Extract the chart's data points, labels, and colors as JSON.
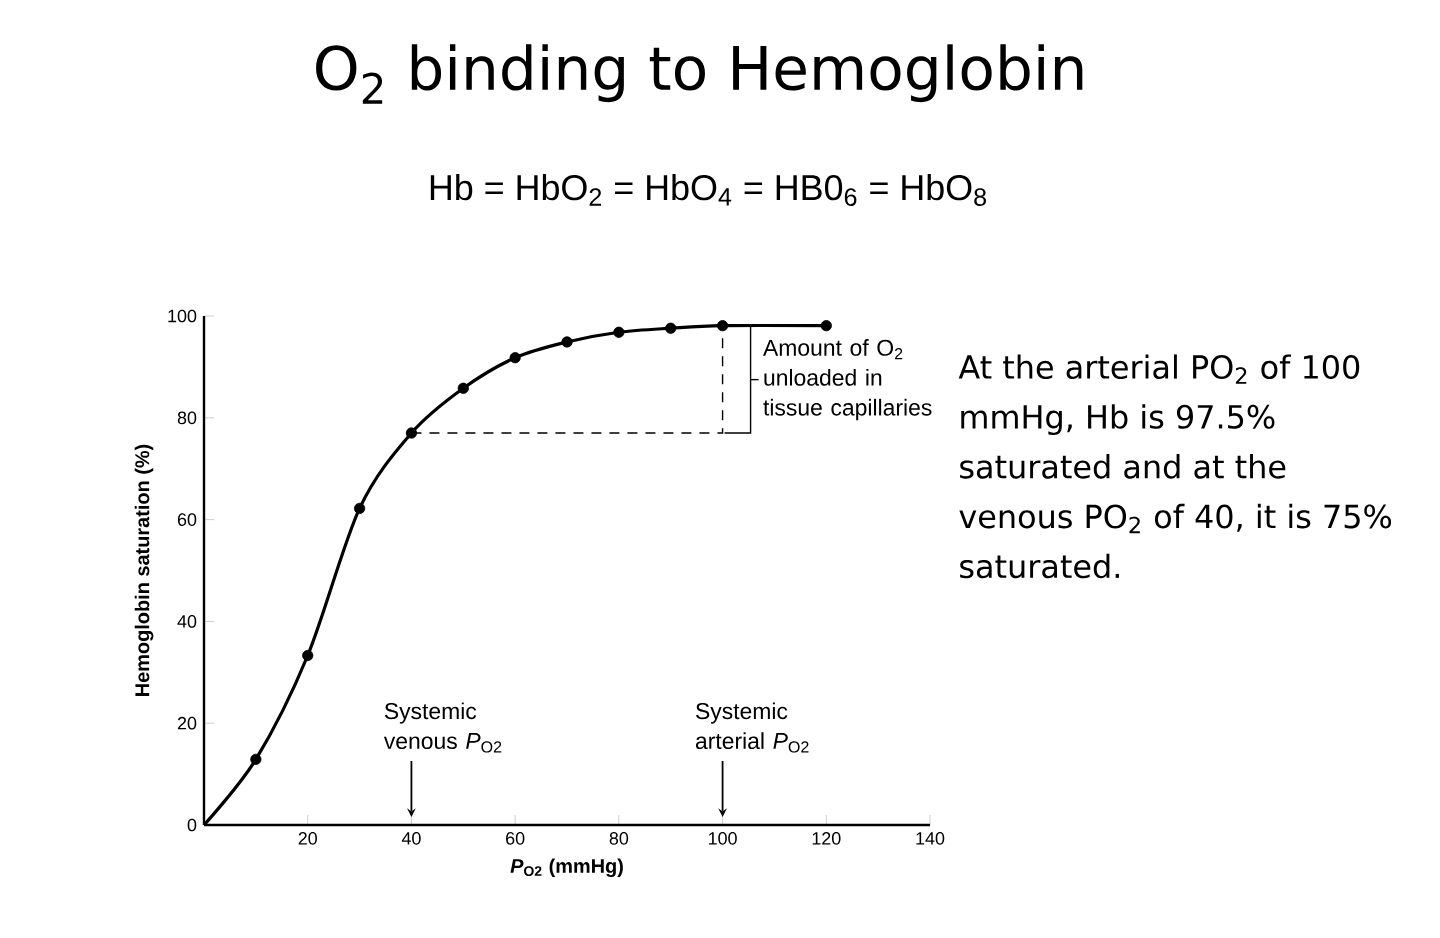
{
  "chart_data": {
    "type": "line",
    "title": "O$_{2}$ binding to Hemoglobin",
    "subtitle": "Hb = HbO$_{2}$ = HbO$_{4}$ = HB0$_{6}$ = HbO$_{8}$",
    "xlabel": "*P*$_{O2}$ (mmHg)",
    "ylabel": "Hemoglobin saturation (%)",
    "xlim": [
      0,
      140
    ],
    "ylim": [
      0,
      100
    ],
    "xticks": [
      20,
      40,
      60,
      80,
      100,
      120,
      140
    ],
    "yticks": [
      0,
      20,
      40,
      60,
      80,
      100
    ],
    "series": [
      {
        "type": "line",
        "x": [
          0,
          10,
          20,
          30,
          40,
          50,
          60,
          70,
          80,
          90,
          100,
          120
        ],
        "values": [
          0,
          12.9,
          33.3,
          62.2,
          77,
          85.8,
          91.8,
          94.9,
          96.8,
          97.6,
          98.1,
          98.1
        ],
        "color": "#000000",
        "marker": "none",
        "line_style": "solid"
      },
      {
        "type": "scatter",
        "x": [
          10,
          20,
          30,
          40,
          50,
          60,
          70,
          80,
          90,
          100,
          120
        ],
        "values": [
          12.9,
          33.3,
          62.2,
          77,
          85.8,
          91.8,
          94.9,
          96.8,
          97.6,
          98.1,
          98.1
        ],
        "color": "#000000",
        "marker": "circle"
      },
      {
        "type": "line",
        "x": [
          40,
          100,
          100
        ],
        "values": [
          77,
          77,
          98.1
        ],
        "color": "#000000",
        "marker": "none",
        "line_style": "dashed"
      }
    ],
    "annotations": [
      "Systemic venous *P*$_{O2}$",
      "Systemic arterial *P*$_{O2}$",
      {
        "text": "Amount of O$_{2}$ unloaded in tissue capillaries",
        "x": 100,
        "y": 87.5
      },
      "At the arterial PO$_{2}$ of 100 mmHg, Hb is 97.5% saturated and at the venous PO$_{2}$ of 40, it is 75% saturated."
    ]
  }
}
